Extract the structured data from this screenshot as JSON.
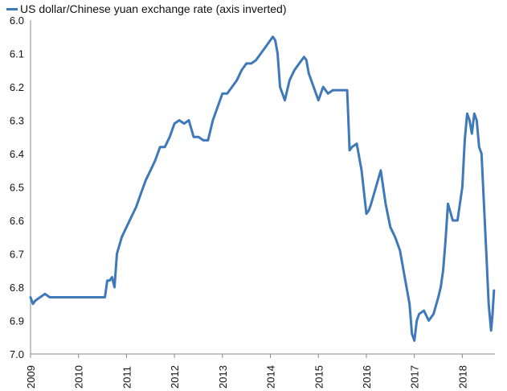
{
  "chart_data": {
    "type": "line",
    "title": "",
    "xlabel": "",
    "ylabel": "",
    "y_inverted": true,
    "ylim": [
      6.0,
      7.0
    ],
    "xlim": [
      2009.0,
      2018.68
    ],
    "grid": false,
    "legend_position": "top-left",
    "x_ticks": [
      "2009",
      "2010",
      "2011",
      "2012",
      "2013",
      "2014",
      "2015",
      "2016",
      "2017",
      "2018"
    ],
    "y_ticks": [
      "6.0",
      "6.1",
      "6.2",
      "6.3",
      "6.4",
      "6.5",
      "6.6",
      "6.7",
      "6.8",
      "6.9",
      "7.0"
    ],
    "series": [
      {
        "name": "US dollar/Chinese yuan exchange rate (axis inverted)",
        "color": "#3f79b9",
        "x": [
          2009.0,
          2009.05,
          2009.1,
          2009.2,
          2009.3,
          2009.4,
          2009.5,
          2009.6,
          2009.7,
          2009.8,
          2009.9,
          2010.0,
          2010.1,
          2010.2,
          2010.3,
          2010.4,
          2010.45,
          2010.5,
          2010.55,
          2010.6,
          2010.65,
          2010.7,
          2010.75,
          2010.8,
          2010.9,
          2011.0,
          2011.1,
          2011.2,
          2011.3,
          2011.4,
          2011.5,
          2011.6,
          2011.7,
          2011.8,
          2011.9,
          2012.0,
          2012.1,
          2012.2,
          2012.3,
          2012.4,
          2012.5,
          2012.6,
          2012.7,
          2012.8,
          2012.9,
          2013.0,
          2013.1,
          2013.2,
          2013.3,
          2013.4,
          2013.5,
          2013.6,
          2013.7,
          2013.8,
          2013.9,
          2014.0,
          2014.05,
          2014.1,
          2014.15,
          2014.2,
          2014.3,
          2014.4,
          2014.5,
          2014.6,
          2014.7,
          2014.75,
          2014.8,
          2014.9,
          2015.0,
          2015.1,
          2015.2,
          2015.3,
          2015.4,
          2015.5,
          2015.55,
          2015.6,
          2015.65,
          2015.7,
          2015.8,
          2015.9,
          2016.0,
          2016.05,
          2016.1,
          2016.2,
          2016.3,
          2016.4,
          2016.5,
          2016.6,
          2016.7,
          2016.8,
          2016.9,
          2016.95,
          2017.0,
          2017.05,
          2017.1,
          2017.2,
          2017.3,
          2017.4,
          2017.5,
          2017.55,
          2017.6,
          2017.65,
          2017.7,
          2017.8,
          2017.9,
          2017.95,
          2018.0,
          2018.05,
          2018.1,
          2018.15,
          2018.2,
          2018.25,
          2018.3,
          2018.35,
          2018.4,
          2018.45,
          2018.5,
          2018.55,
          2018.6,
          2018.63,
          2018.66
        ],
        "values": [
          6.83,
          6.85,
          6.84,
          6.83,
          6.82,
          6.83,
          6.83,
          6.83,
          6.83,
          6.83,
          6.83,
          6.83,
          6.83,
          6.83,
          6.83,
          6.83,
          6.83,
          6.83,
          6.83,
          6.78,
          6.78,
          6.77,
          6.8,
          6.7,
          6.65,
          6.62,
          6.59,
          6.56,
          6.52,
          6.48,
          6.45,
          6.42,
          6.38,
          6.38,
          6.35,
          6.31,
          6.3,
          6.31,
          6.3,
          6.35,
          6.35,
          6.36,
          6.36,
          6.3,
          6.26,
          6.22,
          6.22,
          6.2,
          6.18,
          6.15,
          6.13,
          6.13,
          6.12,
          6.1,
          6.08,
          6.06,
          6.05,
          6.06,
          6.1,
          6.2,
          6.24,
          6.18,
          6.15,
          6.13,
          6.11,
          6.12,
          6.16,
          6.2,
          6.24,
          6.2,
          6.22,
          6.21,
          6.21,
          6.21,
          6.21,
          6.21,
          6.39,
          6.38,
          6.37,
          6.45,
          6.58,
          6.57,
          6.55,
          6.5,
          6.45,
          6.55,
          6.62,
          6.65,
          6.69,
          6.77,
          6.85,
          6.94,
          6.96,
          6.9,
          6.88,
          6.87,
          6.9,
          6.88,
          6.83,
          6.8,
          6.75,
          6.66,
          6.55,
          6.6,
          6.6,
          6.55,
          6.5,
          6.36,
          6.28,
          6.3,
          6.34,
          6.28,
          6.3,
          6.38,
          6.4,
          6.55,
          6.7,
          6.85,
          6.93,
          6.88,
          6.81
        ]
      }
    ]
  }
}
